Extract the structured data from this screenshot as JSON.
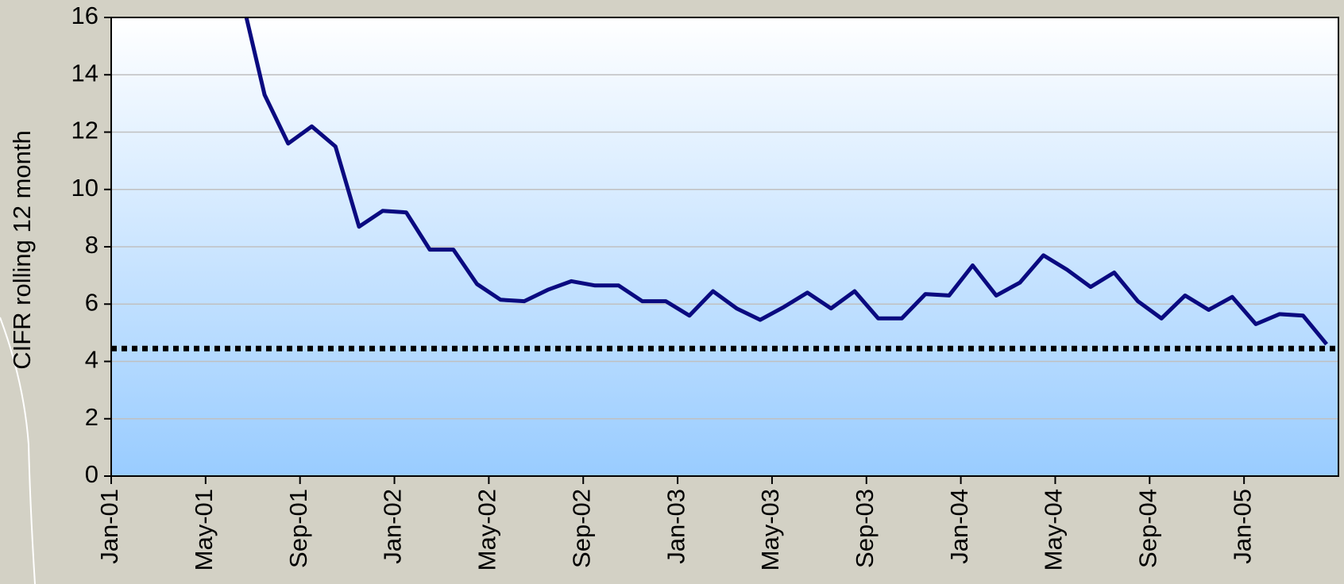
{
  "chart_data": {
    "type": "line",
    "y_label": "CIFR rolling 12 month",
    "categories": [
      "Jan-01",
      null,
      null,
      null,
      "May-01",
      null,
      null,
      null,
      "Sep-01",
      null,
      null,
      null,
      "Jan-02",
      null,
      null,
      null,
      "May-02",
      null,
      null,
      null,
      "Sep-02",
      null,
      null,
      null,
      "Jan-03",
      null,
      null,
      null,
      "May-03",
      null,
      null,
      null,
      "Sep-03",
      null,
      null,
      null,
      "Jan-04",
      null,
      null,
      null,
      "May-04",
      null,
      null,
      null,
      "Sep-04",
      null,
      null,
      null,
      "Jan-05",
      null,
      null,
      null
    ],
    "values": [
      null,
      null,
      null,
      null,
      null,
      16.8,
      13.3,
      11.6,
      12.2,
      11.5,
      8.7,
      9.25,
      9.2,
      7.9,
      7.9,
      6.7,
      6.15,
      6.1,
      6.5,
      6.8,
      6.65,
      6.65,
      6.1,
      6.1,
      5.6,
      6.45,
      5.85,
      5.45,
      5.9,
      6.4,
      5.85,
      6.45,
      5.5,
      5.5,
      6.35,
      6.3,
      7.35,
      6.3,
      6.75,
      7.7,
      7.2,
      6.6,
      7.1,
      6.1,
      5.5,
      6.3,
      5.8,
      6.25,
      5.3,
      5.65,
      5.6,
      4.6
    ],
    "color": "#0a0a80",
    "reference_line": 4.45,
    "reference_color": "#000000",
    "ylim": [
      0,
      16
    ],
    "yticks": [
      0,
      2,
      4,
      6,
      8,
      10,
      12,
      14,
      16
    ],
    "grid": true
  }
}
